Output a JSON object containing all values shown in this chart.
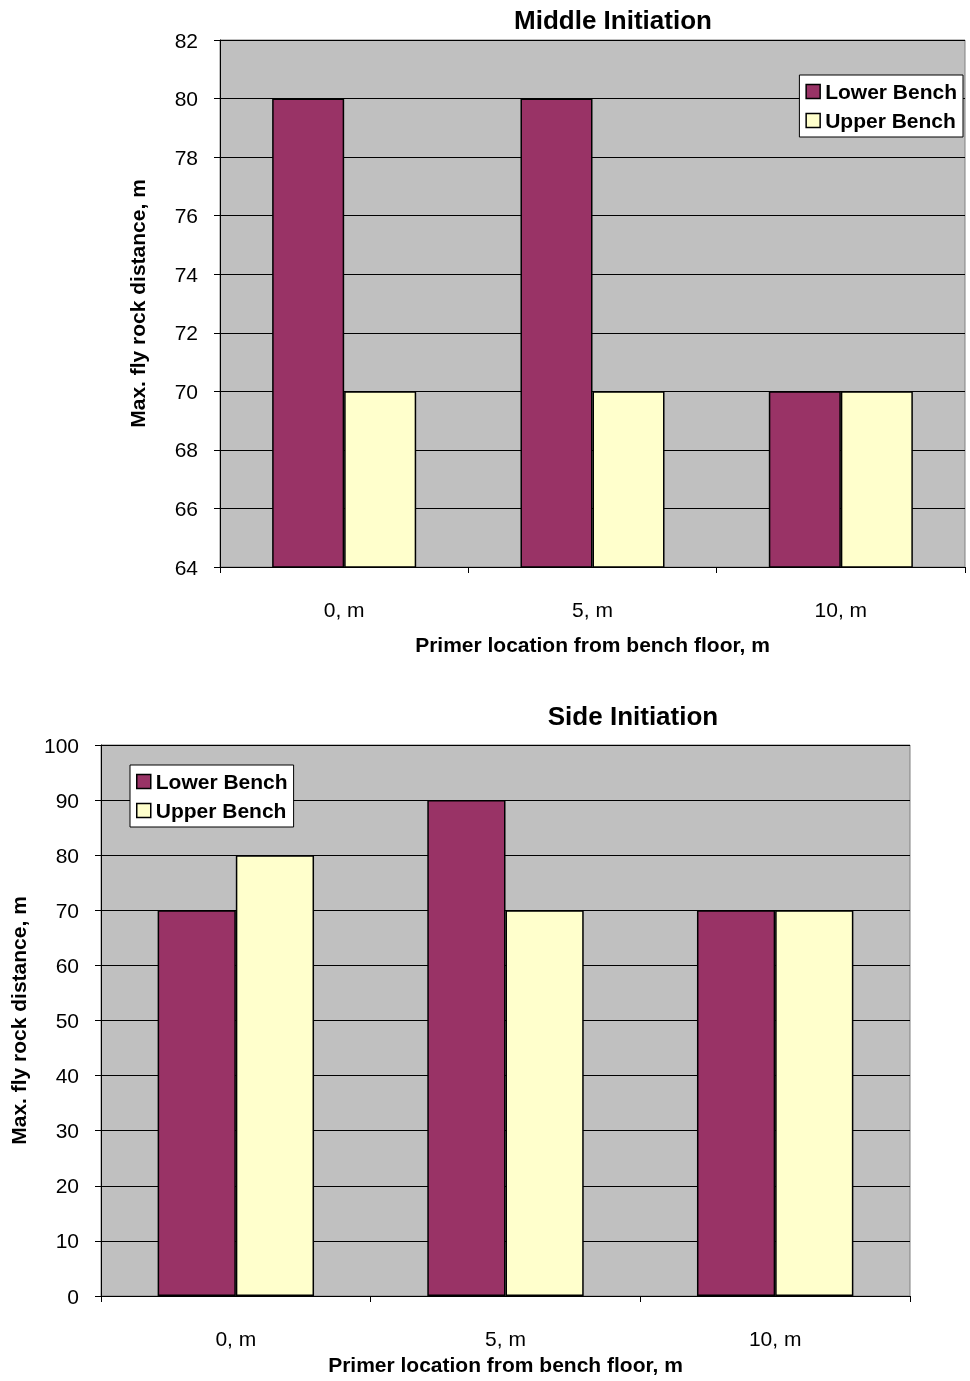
{
  "chart_data": [
    {
      "type": "bar",
      "title": "Middle Initiation",
      "xlabel": "Primer location from bench floor, m",
      "ylabel": "Max. fly rock distance, m",
      "categories": [
        "0, m",
        "5, m",
        "10, m"
      ],
      "series": [
        {
          "name": "Lower Bench",
          "color": "#993366",
          "values": [
            80,
            80,
            70
          ]
        },
        {
          "name": "Upper Bench",
          "color": "#ffffcc",
          "values": [
            70,
            70,
            70
          ]
        }
      ],
      "ylim": [
        64,
        82
      ],
      "yticks": [
        64,
        66,
        68,
        70,
        72,
        74,
        76,
        78,
        80,
        82
      ],
      "grid": "y",
      "legend": "top right"
    },
    {
      "type": "bar",
      "title": "Side Initiation",
      "xlabel": "Primer location from bench floor, m",
      "ylabel": "Max. fly rock distance, m",
      "categories": [
        "0, m",
        "5, m",
        "10, m"
      ],
      "series": [
        {
          "name": "Lower Bench",
          "color": "#993366",
          "values": [
            70,
            90,
            70
          ]
        },
        {
          "name": "Upper Bench",
          "color": "#ffffcc",
          "values": [
            80,
            70,
            70
          ]
        }
      ],
      "ylim": [
        0,
        100
      ],
      "yticks": [
        0,
        10,
        20,
        30,
        40,
        50,
        60,
        70,
        80,
        90,
        100
      ],
      "grid": "y",
      "legend": "top left"
    }
  ]
}
